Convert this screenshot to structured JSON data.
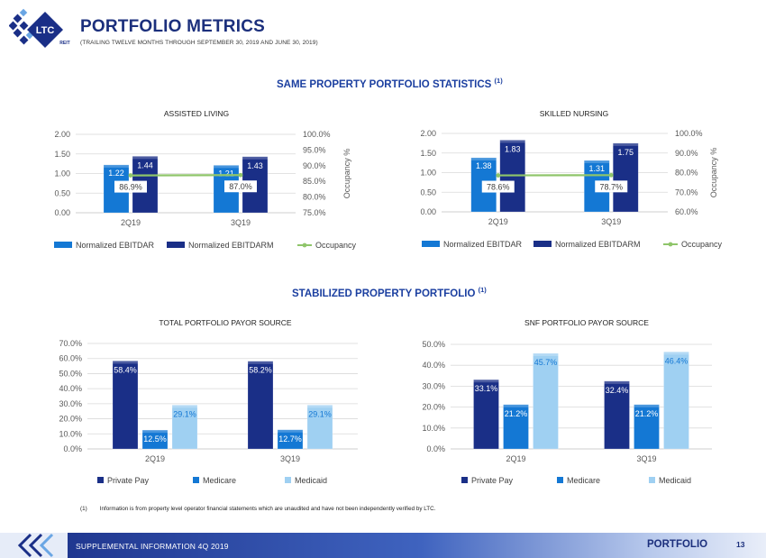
{
  "header": {
    "logo_text": "LTC",
    "logo_subtext": "REIT",
    "title": "PORTFOLIO METRICS",
    "subtitle": "(TRAILING TWELVE MONTHS THROUGH SEPTEMBER 30, 2019 AND JUNE 30, 2019)"
  },
  "sections": {
    "same_property": {
      "title": "SAME PROPERTY PORTFOLIO STATISTICS",
      "note": "(1)"
    },
    "stabilized": {
      "title": "STABILIZED PROPERTY PORTFOLIO",
      "note": "(1)"
    }
  },
  "colors": {
    "navy": "#1b2f7c",
    "ebitdar": "#1478d4",
    "ebitdarm": "#1a2f87",
    "occupancy": "#8fc56a",
    "private_pay": "#1a2f87",
    "medicare": "#1478d4",
    "medicaid": "#9fd0f2"
  },
  "chart_data": [
    {
      "type": "bar",
      "title": "ASSISTED LIVING",
      "categories": [
        "2Q19",
        "3Q19"
      ],
      "series": [
        {
          "name": "Normalized EBITDAR",
          "values": [
            1.22,
            1.21
          ],
          "labels": [
            "1.22",
            "1.21"
          ]
        },
        {
          "name": "Normalized EBITDARM",
          "values": [
            1.44,
            1.43
          ],
          "labels": [
            "1.44",
            "1.43"
          ]
        }
      ],
      "line_series": {
        "name": "Occupancy",
        "values": [
          86.9,
          87.0
        ],
        "labels": [
          "86.9%",
          "87.0%"
        ],
        "axis": "secondary"
      },
      "ylim": [
        0,
        2.0
      ],
      "y_ticks": [
        "0.00",
        "0.50",
        "1.00",
        "1.50",
        "2.00"
      ],
      "y2lim": [
        75,
        100
      ],
      "y2_ticks": [
        "75.0%",
        "80.0%",
        "85.0%",
        "90.0%",
        "95.0%",
        "100.0%"
      ],
      "y2label": "Occupancy %",
      "legend": "bottom"
    },
    {
      "type": "bar",
      "title": "SKILLED NURSING",
      "categories": [
        "2Q19",
        "3Q19"
      ],
      "series": [
        {
          "name": "Normalized EBITDAR",
          "values": [
            1.38,
            1.31
          ],
          "labels": [
            "1.38",
            "1.31"
          ]
        },
        {
          "name": "Normalized EBITDARM",
          "values": [
            1.83,
            1.75
          ],
          "labels": [
            "1.83",
            "1.75"
          ]
        }
      ],
      "line_series": {
        "name": "Occupancy",
        "values": [
          78.6,
          78.7
        ],
        "labels": [
          "78.6%",
          "78.7%"
        ],
        "axis": "secondary"
      },
      "ylim": [
        0,
        2.0
      ],
      "y_ticks": [
        "0.00",
        "0.50",
        "1.00",
        "1.50",
        "2.00"
      ],
      "y2lim": [
        60,
        100
      ],
      "y2_ticks": [
        "60.0%",
        "70.0%",
        "80.0%",
        "90.0%",
        "100.0%"
      ],
      "y2label": "Occupancy %",
      "legend": "bottom"
    },
    {
      "type": "bar",
      "title": "TOTAL PORTFOLIO PAYOR SOURCE",
      "categories": [
        "2Q19",
        "3Q19"
      ],
      "series": [
        {
          "name": "Private Pay",
          "values": [
            58.4,
            58.2
          ],
          "labels": [
            "58.4%",
            "58.2%"
          ]
        },
        {
          "name": "Medicare",
          "values": [
            12.5,
            12.7
          ],
          "labels": [
            "12.5%",
            "12.7%"
          ]
        },
        {
          "name": "Medicaid",
          "values": [
            29.1,
            29.1
          ],
          "labels": [
            "29.1%",
            "29.1%"
          ]
        }
      ],
      "ylim": [
        0,
        70
      ],
      "y_ticks": [
        "0.0%",
        "10.0%",
        "20.0%",
        "30.0%",
        "40.0%",
        "50.0%",
        "60.0%",
        "70.0%"
      ],
      "legend": "bottom"
    },
    {
      "type": "bar",
      "title": "SNF PORTFOLIO PAYOR SOURCE",
      "categories": [
        "2Q19",
        "3Q19"
      ],
      "series": [
        {
          "name": "Private Pay",
          "values": [
            33.1,
            32.4
          ],
          "labels": [
            "33.1%",
            "32.4%"
          ]
        },
        {
          "name": "Medicare",
          "values": [
            21.2,
            21.2
          ],
          "labels": [
            "21.2%",
            "21.2%"
          ]
        },
        {
          "name": "Medicaid",
          "values": [
            45.7,
            46.4
          ],
          "labels": [
            "45.7%",
            "46.4%"
          ]
        }
      ],
      "ylim": [
        0,
        50
      ],
      "y_ticks": [
        "0.0%",
        "10.0%",
        "20.0%",
        "30.0%",
        "40.0%",
        "50.0%"
      ],
      "legend": "bottom"
    }
  ],
  "footnote": {
    "number": "(1)",
    "text": "Information is from property level operator financial statements which are unaudited and have not been independently verified by LTC."
  },
  "footer": {
    "left_text": "SUPPLEMENTAL INFORMATION  4Q 2019",
    "section_label": "PORTFOLIO",
    "page_number": "13"
  }
}
